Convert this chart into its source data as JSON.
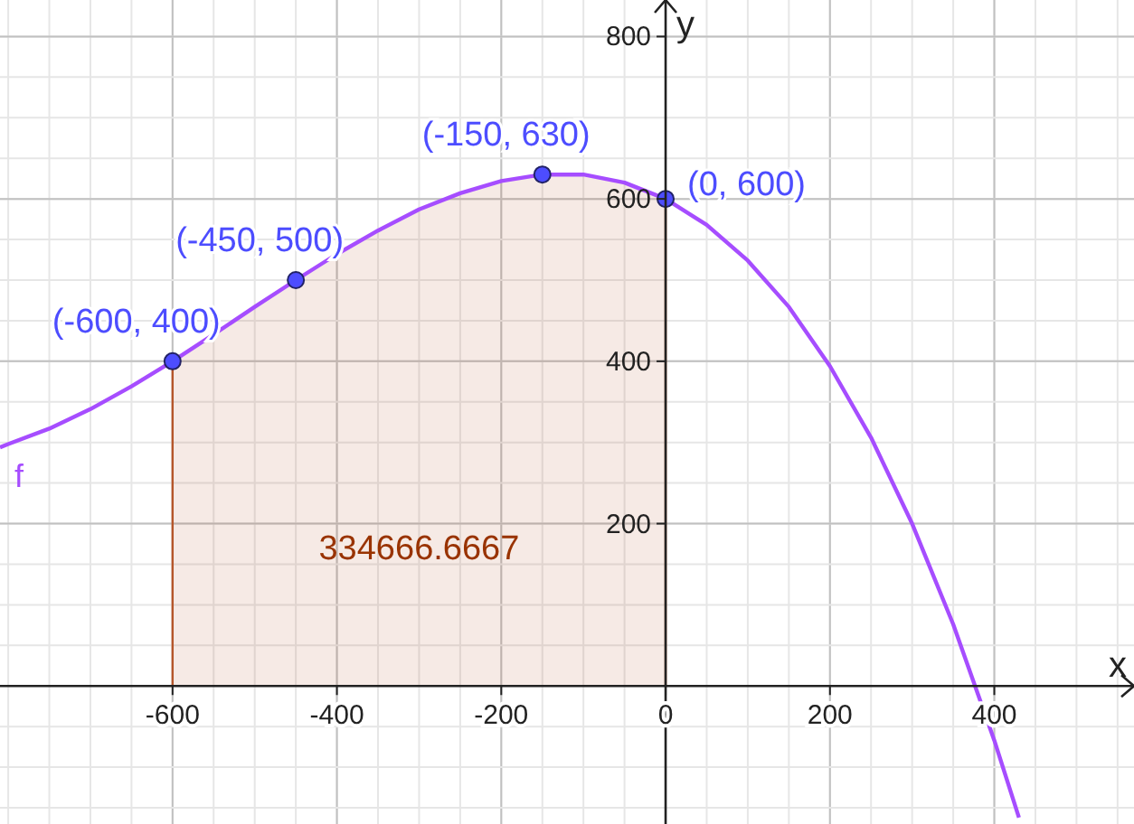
{
  "chart_data": {
    "type": "line",
    "xlabel": "x",
    "ylabel": "y",
    "xlim": [
      -810,
      570
    ],
    "ylim": [
      -170,
      845
    ],
    "xticks": [
      -600,
      -400,
      -200,
      0,
      200,
      400
    ],
    "yticks": [
      200,
      400,
      600,
      800
    ],
    "grid": true,
    "legend": false,
    "series": [
      {
        "type": "area",
        "color": "#b5562a",
        "x": [
          -600,
          -550,
          -500,
          -450,
          -400,
          -350,
          -300,
          -250,
          -200,
          -150,
          -100,
          -50,
          0
        ],
        "values": [
          400,
          433,
          467,
          500,
          532,
          561,
          587,
          607,
          622,
          630,
          630,
          620,
          600
        ]
      },
      {
        "name": "f",
        "color": "#a64dff",
        "marker": "none",
        "x": [
          -810,
          -800,
          -750,
          -700,
          -650,
          -600,
          -550,
          -500,
          -450,
          -400,
          -350,
          -300,
          -250,
          -200,
          -150,
          -100,
          -50,
          0,
          50,
          100,
          150,
          200,
          250,
          300,
          350,
          400,
          430
        ],
        "values": [
          294,
          298,
          317,
          341,
          369,
          400,
          433,
          467,
          500,
          532,
          561,
          587,
          607,
          622,
          630,
          630,
          620,
          600,
          568,
          524,
          467,
          394,
          306,
          200,
          76,
          -67,
          -162
        ]
      },
      {
        "type": "scatter",
        "color": "#4d4dff",
        "marker": "circle",
        "x": [
          -600,
          -450,
          -150,
          0
        ],
        "values": [
          400,
          500,
          630,
          600
        ]
      }
    ],
    "annotations": [
      {
        "text": "(-600, 400)",
        "x": -600,
        "y": 400
      },
      {
        "text": "(-450, 500)",
        "x": -450,
        "y": 500
      },
      {
        "text": "(-150, 630)",
        "x": -150,
        "y": 630
      },
      {
        "text": "(0, 600)",
        "x": 0,
        "y": 600
      },
      "334666.6667"
    ]
  }
}
